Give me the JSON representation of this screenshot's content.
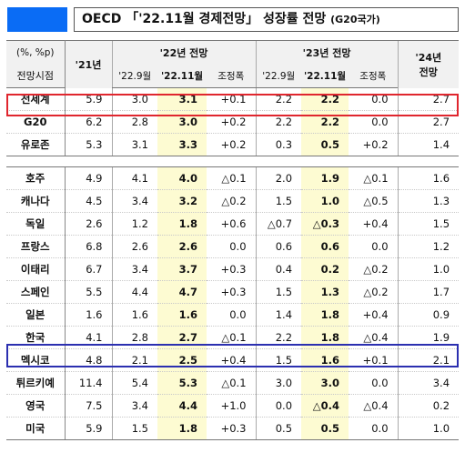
{
  "title": {
    "main": "OECD 「'22.11월 경제전망」 성장률 전망",
    "sub": "(G20국가)"
  },
  "colors": {
    "accent_box": "#0a6cf5",
    "highlight": "#fdfbd2",
    "world_box": "#e0262e",
    "korea_box": "#2b2fb0"
  },
  "header": {
    "unit": "(%, %p)",
    "row_label": "전망시점",
    "y21": "'21년",
    "y22": "'22년 전망",
    "y23": "'23년 전망",
    "y24": "'24년",
    "y24b": "전망",
    "sub": [
      "'22.9월",
      "'22.11월",
      "조정폭",
      "'22.9월",
      "'22.11월",
      "조정폭"
    ]
  },
  "groups": [
    {
      "rows": [
        {
          "name": "전세계",
          "v": [
            "5.9",
            "3.0",
            "3.1",
            "+0.1",
            "2.2",
            "2.2",
            "0.0",
            "2.7"
          ]
        },
        {
          "name": "G20",
          "v": [
            "6.2",
            "2.8",
            "3.0",
            "+0.2",
            "2.2",
            "2.2",
            "0.0",
            "2.7"
          ]
        },
        {
          "name": "유로존",
          "v": [
            "5.3",
            "3.1",
            "3.3",
            "+0.2",
            "0.3",
            "0.5",
            "+0.2",
            "1.4"
          ]
        }
      ]
    },
    {
      "rows": [
        {
          "name": "호주",
          "v": [
            "4.9",
            "4.1",
            "4.0",
            "△0.1",
            "2.0",
            "1.9",
            "△0.1",
            "1.6"
          ]
        },
        {
          "name": "캐나다",
          "v": [
            "4.5",
            "3.4",
            "3.2",
            "△0.2",
            "1.5",
            "1.0",
            "△0.5",
            "1.3"
          ]
        },
        {
          "name": "독일",
          "v": [
            "2.6",
            "1.2",
            "1.8",
            "+0.6",
            "△0.7",
            "△0.3",
            "+0.4",
            "1.5"
          ]
        },
        {
          "name": "프랑스",
          "v": [
            "6.8",
            "2.6",
            "2.6",
            "0.0",
            "0.6",
            "0.6",
            "0.0",
            "1.2"
          ]
        },
        {
          "name": "이태리",
          "v": [
            "6.7",
            "3.4",
            "3.7",
            "+0.3",
            "0.4",
            "0.2",
            "△0.2",
            "1.0"
          ]
        },
        {
          "name": "스페인",
          "v": [
            "5.5",
            "4.4",
            "4.7",
            "+0.3",
            "1.5",
            "1.3",
            "△0.2",
            "1.7"
          ]
        },
        {
          "name": "일본",
          "v": [
            "1.6",
            "1.6",
            "1.6",
            "0.0",
            "1.4",
            "1.8",
            "+0.4",
            "0.9"
          ]
        },
        {
          "name": "한국",
          "v": [
            "4.1",
            "2.8",
            "2.7",
            "△0.1",
            "2.2",
            "1.8",
            "△0.4",
            "1.9"
          ]
        },
        {
          "name": "멕시코",
          "v": [
            "4.8",
            "2.1",
            "2.5",
            "+0.4",
            "1.5",
            "1.6",
            "+0.1",
            "2.1"
          ]
        },
        {
          "name": "튀르키예",
          "v": [
            "11.4",
            "5.4",
            "5.3",
            "△0.1",
            "3.0",
            "3.0",
            "0.0",
            "3.4"
          ]
        },
        {
          "name": "영국",
          "v": [
            "7.5",
            "3.4",
            "4.4",
            "+1.0",
            "0.0",
            "△0.4",
            "△0.4",
            "0.2"
          ]
        },
        {
          "name": "미국",
          "v": [
            "5.9",
            "1.5",
            "1.8",
            "+0.3",
            "0.5",
            "0.5",
            "0.0",
            "1.0"
          ]
        }
      ]
    }
  ]
}
